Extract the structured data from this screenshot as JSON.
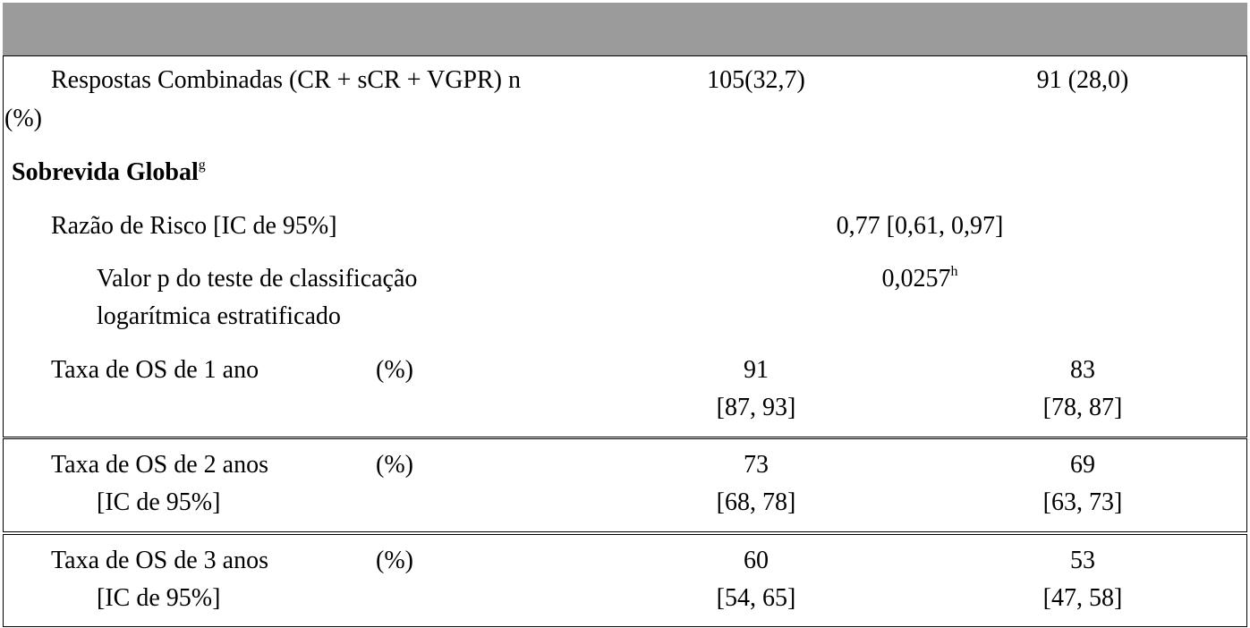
{
  "sections": [
    {
      "rows": [
        {
          "label_lines": [
            "Respostas Combinadas (CR + sCR + VGPR) n",
            "(%)"
          ],
          "col1": "105(32,7)",
          "col2": "91 (28,0)"
        }
      ]
    },
    {
      "title": "Sobrevida Global",
      "title_sup": "g",
      "rows": [
        {
          "label": "Razão de Risco [IC de 95%]",
          "value": "0,77 [0,61, 0,97]"
        },
        {
          "label_lines": [
            "Valor p do teste de classificação",
            "logarítmica estratificado"
          ],
          "value": "0,0257",
          "value_sup": "h"
        }
      ]
    },
    {
      "rate_rows": [
        {
          "label": "Taxa de OS de 1 ano",
          "unit": "(%)",
          "col1": [
            "91",
            "[87, 93]"
          ],
          "col2": [
            "83",
            "[78, 87]"
          ]
        },
        {
          "label": "Taxa de OS de 2 anos",
          "unit": "(%)",
          "sublabel": "[IC de 95%]",
          "col1": [
            "73",
            "[68, 78]"
          ],
          "col2": [
            "69",
            "[63, 73]"
          ]
        },
        {
          "label": "Taxa de OS de 3 anos",
          "unit": "(%)",
          "sublabel": "[IC de 95%]",
          "col1": [
            "60",
            "[54, 65]"
          ],
          "col2": [
            "53",
            "[47, 58]"
          ]
        }
      ]
    }
  ]
}
